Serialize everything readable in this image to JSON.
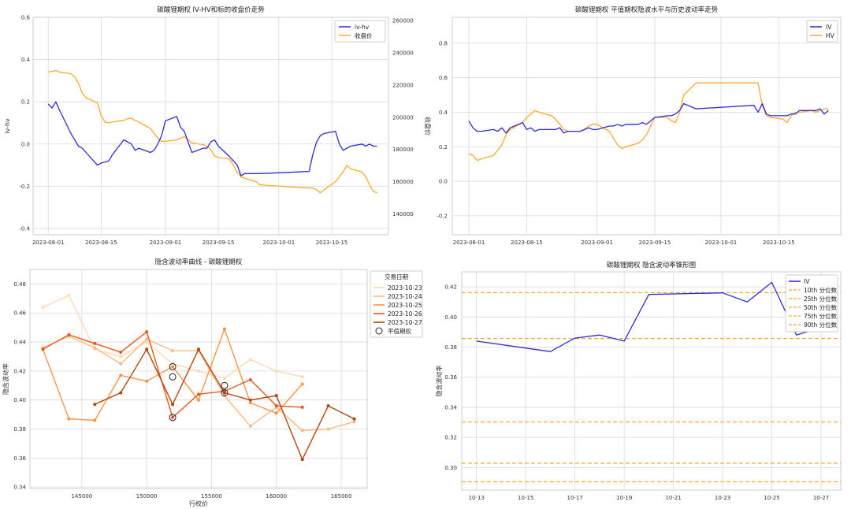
{
  "chart_data": [
    {
      "type": "line",
      "title": "碳酸锂期权 IV-HV和标的收盘价走势",
      "xlabel": "",
      "ylabel": "iv-hv",
      "y2label": "收盘价",
      "x_ticks": [
        "2023-08-01",
        "2023-08-15",
        "2023-09-01",
        "2023-09-15",
        "2023-10-01",
        "2023-10-15"
      ],
      "y_ticks": [
        "-0.4",
        "-0.2",
        "0.0",
        "0.2",
        "0.4",
        "0.6"
      ],
      "y2_ticks": [
        "140000",
        "160000",
        "180000",
        "200000",
        "220000",
        "240000",
        "260000"
      ],
      "ylim": [
        -0.43,
        0.6
      ],
      "y2lim": [
        127000,
        262000
      ],
      "legend": [
        "iv-hv",
        "收盘价"
      ],
      "legend_position": "top-right",
      "grid": true,
      "colors": {
        "iv_hv": "#2b2bdc",
        "close": "#ffa726",
        "y2_axis": "#d62728",
        "y_axis": "#1f77b4"
      },
      "series": [
        {
          "name": "iv-hv",
          "axis": "left",
          "color": "#2b2bdc",
          "x": [
            "2023-08-01",
            "2023-08-02",
            "2023-08-03",
            "2023-08-04",
            "2023-08-07",
            "2023-08-09",
            "2023-08-10",
            "2023-08-11",
            "2023-08-14",
            "2023-08-15",
            "2023-08-17",
            "2023-08-18",
            "2023-08-21",
            "2023-08-22",
            "2023-08-23",
            "2023-08-24",
            "2023-08-25",
            "2023-08-28",
            "2023-08-29",
            "2023-08-30",
            "2023-08-31",
            "2023-09-01",
            "2023-09-04",
            "2023-09-05",
            "2023-09-06",
            "2023-09-07",
            "2023-09-08",
            "2023-09-11",
            "2023-09-12",
            "2023-09-13",
            "2023-09-14",
            "2023-09-15",
            "2023-09-18",
            "2023-09-20",
            "2023-09-21",
            "2023-09-22",
            "2023-09-25",
            "2023-09-26",
            "2023-10-09",
            "2023-10-10",
            "2023-10-11",
            "2023-10-12",
            "2023-10-13",
            "2023-10-16",
            "2023-10-17",
            "2023-10-18",
            "2023-10-19",
            "2023-10-20",
            "2023-10-23",
            "2023-10-24",
            "2023-10-25",
            "2023-10-26",
            "2023-10-27"
          ],
          "y": [
            0.19,
            0.17,
            0.2,
            0.16,
            0.05,
            -0.01,
            -0.02,
            -0.04,
            -0.1,
            -0.09,
            -0.08,
            -0.05,
            0.02,
            0.01,
            0.0,
            -0.03,
            -0.02,
            -0.04,
            -0.03,
            0.0,
            0.04,
            0.11,
            0.13,
            0.08,
            0.06,
            0.01,
            -0.04,
            -0.02,
            -0.02,
            0.01,
            0.02,
            -0.01,
            -0.06,
            -0.1,
            -0.15,
            -0.14,
            -0.14,
            -0.14,
            -0.13,
            -0.05,
            0.01,
            0.04,
            0.05,
            0.06,
            0.0,
            -0.03,
            -0.02,
            -0.01,
            0.0,
            -0.01,
            0.0,
            -0.01,
            -0.01
          ]
        },
        {
          "name": "收盘价",
          "axis": "right",
          "color": "#ffa726",
          "x": [
            "2023-08-01",
            "2023-08-02",
            "2023-08-03",
            "2023-08-04",
            "2023-08-07",
            "2023-08-08",
            "2023-08-09",
            "2023-08-10",
            "2023-08-11",
            "2023-08-14",
            "2023-08-15",
            "2023-08-16",
            "2023-08-17",
            "2023-08-18",
            "2023-08-21",
            "2023-08-22",
            "2023-08-23",
            "2023-08-24",
            "2023-08-25",
            "2023-08-28",
            "2023-08-29",
            "2023-08-30",
            "2023-08-31",
            "2023-09-01",
            "2023-09-04",
            "2023-09-05",
            "2023-09-06",
            "2023-09-07",
            "2023-09-08",
            "2023-09-11",
            "2023-09-12",
            "2023-09-13",
            "2023-09-14",
            "2023-09-15",
            "2023-09-18",
            "2023-09-19",
            "2023-09-20",
            "2023-09-21",
            "2023-09-22",
            "2023-09-25",
            "2023-09-26",
            "2023-10-09",
            "2023-10-10",
            "2023-10-11",
            "2023-10-12",
            "2023-10-13",
            "2023-10-16",
            "2023-10-17",
            "2023-10-18",
            "2023-10-19",
            "2023-10-20",
            "2023-10-23",
            "2023-10-24",
            "2023-10-25",
            "2023-10-26",
            "2023-10-27"
          ],
          "y": [
            228000,
            228500,
            229000,
            228000,
            227000,
            225000,
            221000,
            215000,
            212000,
            209000,
            201000,
            197000,
            196500,
            197000,
            198000,
            199000,
            199500,
            198000,
            197000,
            193000,
            190000,
            187000,
            185000,
            185000,
            186000,
            187000,
            188000,
            186000,
            184000,
            183000,
            182000,
            180000,
            176000,
            175000,
            174000,
            170000,
            166000,
            163000,
            162000,
            160000,
            158000,
            156000,
            156000,
            155000,
            153000,
            155000,
            160000,
            163000,
            166000,
            170000,
            168000,
            166000,
            163000,
            158000,
            154000,
            153000
          ]
        }
      ]
    },
    {
      "type": "line",
      "title": "碳酸锂期权 平值期权隐波水平与历史波动率走势",
      "xlabel": "",
      "ylabel": "",
      "x_ticks": [
        "2023-08-01",
        "2023-08-15",
        "2023-09-01",
        "2023-09-15",
        "2023-10-01",
        "2023-10-15"
      ],
      "y_ticks": [
        "-0.2",
        "0.0",
        "0.2",
        "0.4",
        "0.6",
        "0.8"
      ],
      "ylim": [
        -0.31,
        0.95
      ],
      "legend": [
        "IV",
        "HV"
      ],
      "legend_position": "top-right",
      "grid": true,
      "series": [
        {
          "name": "IV",
          "color": "#2b2bdc",
          "x": [
            "2023-08-01",
            "2023-08-02",
            "2023-08-03",
            "2023-08-04",
            "2023-08-07",
            "2023-08-08",
            "2023-08-09",
            "2023-08-10",
            "2023-08-11",
            "2023-08-14",
            "2023-08-15",
            "2023-08-16",
            "2023-08-17",
            "2023-08-18",
            "2023-08-21",
            "2023-08-22",
            "2023-08-23",
            "2023-08-24",
            "2023-08-25",
            "2023-08-28",
            "2023-08-29",
            "2023-08-30",
            "2023-08-31",
            "2023-09-01",
            "2023-09-04",
            "2023-09-05",
            "2023-09-06",
            "2023-09-07",
            "2023-09-08",
            "2023-09-11",
            "2023-09-12",
            "2023-09-13",
            "2023-09-14",
            "2023-09-15",
            "2023-09-18",
            "2023-09-19",
            "2023-09-20",
            "2023-09-21",
            "2023-09-22",
            "2023-09-25",
            "2023-10-09",
            "2023-10-10",
            "2023-10-11",
            "2023-10-12",
            "2023-10-13",
            "2023-10-16",
            "2023-10-17",
            "2023-10-18",
            "2023-10-19",
            "2023-10-20",
            "2023-10-23",
            "2023-10-24",
            "2023-10-25",
            "2023-10-26",
            "2023-10-27"
          ],
          "y": [
            0.35,
            0.31,
            0.29,
            0.29,
            0.3,
            0.29,
            0.31,
            0.28,
            0.31,
            0.34,
            0.3,
            0.31,
            0.29,
            0.3,
            0.3,
            0.3,
            0.31,
            0.28,
            0.29,
            0.29,
            0.3,
            0.31,
            0.3,
            0.3,
            0.32,
            0.32,
            0.33,
            0.32,
            0.33,
            0.33,
            0.34,
            0.33,
            0.35,
            0.37,
            0.38,
            0.38,
            0.39,
            0.41,
            0.45,
            0.42,
            0.44,
            0.4,
            0.45,
            0.39,
            0.38,
            0.38,
            0.38,
            0.39,
            0.39,
            0.41,
            0.41,
            0.41,
            0.42,
            0.39,
            0.41
          ]
        },
        {
          "name": "HV",
          "color": "#ffa726",
          "x": [
            "2023-08-01",
            "2023-08-02",
            "2023-08-03",
            "2023-08-04",
            "2023-08-07",
            "2023-08-08",
            "2023-08-09",
            "2023-08-10",
            "2023-08-11",
            "2023-08-14",
            "2023-08-15",
            "2023-08-16",
            "2023-08-17",
            "2023-08-18",
            "2023-08-21",
            "2023-08-22",
            "2023-08-23",
            "2023-08-24",
            "2023-08-25",
            "2023-08-28",
            "2023-08-29",
            "2023-08-30",
            "2023-08-31",
            "2023-09-01",
            "2023-09-04",
            "2023-09-05",
            "2023-09-06",
            "2023-09-07",
            "2023-09-08",
            "2023-09-11",
            "2023-09-12",
            "2023-09-13",
            "2023-09-14",
            "2023-09-15",
            "2023-09-18",
            "2023-09-19",
            "2023-09-20",
            "2023-09-21",
            "2023-09-22",
            "2023-09-25",
            "2023-10-09",
            "2023-10-10",
            "2023-10-11",
            "2023-10-12",
            "2023-10-13",
            "2023-10-16",
            "2023-10-17",
            "2023-10-18",
            "2023-10-19",
            "2023-10-20",
            "2023-10-23",
            "2023-10-24",
            "2023-10-25",
            "2023-10-26",
            "2023-10-27"
          ],
          "y": [
            0.16,
            0.15,
            0.12,
            0.13,
            0.15,
            0.18,
            0.21,
            0.27,
            0.3,
            0.34,
            0.37,
            0.39,
            0.41,
            0.4,
            0.38,
            0.36,
            0.33,
            0.3,
            0.29,
            0.29,
            0.3,
            0.32,
            0.33,
            0.33,
            0.29,
            0.25,
            0.21,
            0.19,
            0.2,
            0.22,
            0.24,
            0.27,
            0.32,
            0.37,
            0.37,
            0.35,
            0.34,
            0.4,
            0.5,
            0.57,
            0.57,
            0.57,
            0.44,
            0.38,
            0.37,
            0.36,
            0.34,
            0.38,
            0.4,
            0.4,
            0.41,
            0.4,
            0.41,
            0.42,
            0.42
          ]
        }
      ]
    },
    {
      "type": "line",
      "title": "隐含波动率曲线 - 碳酸锂期权",
      "xlabel": "行权价",
      "ylabel": "隐含波动率",
      "x_ticks": [
        "145000",
        "150000",
        "155000",
        "160000",
        "165000"
      ],
      "y_ticks": [
        "0.34",
        "0.36",
        "0.38",
        "0.40",
        "0.42",
        "0.44",
        "0.46",
        "0.48"
      ],
      "xlim": [
        141000,
        167000
      ],
      "ylim": [
        0.339,
        0.49
      ],
      "legend_title": "交易日期",
      "legend_position": "top-right",
      "atm_label": "平值期权",
      "grid": true,
      "series": [
        {
          "name": "2023-10-23",
          "color": "#fdd9b4",
          "x": [
            142000,
            144000,
            146000,
            148000,
            150000,
            152000,
            154000,
            156000,
            158000,
            160000,
            162000
          ],
          "y": [
            0.464,
            0.472,
            0.435,
            0.43,
            0.44,
            0.425,
            0.42,
            0.415,
            0.428,
            0.42,
            0.416
          ]
        },
        {
          "name": "2023-10-24",
          "color": "#fdb97d",
          "x": [
            142000,
            144000,
            146000,
            148000,
            150000,
            152000,
            154000,
            156000,
            158000,
            160000,
            162000,
            164000,
            166000
          ],
          "y": [
            0.436,
            0.444,
            0.436,
            0.425,
            0.442,
            0.434,
            0.434,
            0.403,
            0.382,
            0.395,
            0.379,
            0.38,
            0.385
          ]
        },
        {
          "name": "2023-10-25",
          "color": "#fd9243",
          "x": [
            142000,
            144000,
            146000,
            148000,
            150000,
            152000,
            154000,
            156000,
            158000,
            160000,
            162000
          ],
          "y": [
            0.435,
            0.387,
            0.386,
            0.417,
            0.413,
            0.423,
            0.4,
            0.449,
            0.398,
            0.391,
            0.411
          ]
        },
        {
          "name": "2023-10-26",
          "color": "#e8561b",
          "x": [
            142000,
            144000,
            146000,
            148000,
            150000,
            152000,
            154000,
            156000,
            158000,
            160000,
            162000
          ],
          "y": [
            0.435,
            0.445,
            0.439,
            0.433,
            0.447,
            0.388,
            0.404,
            0.406,
            0.414,
            0.396,
            0.395
          ]
        },
        {
          "name": "2023-10-27",
          "color": "#b84309",
          "x": [
            146000,
            148000,
            150000,
            152000,
            154000,
            156000,
            158000,
            160000,
            162000,
            164000,
            166000
          ],
          "y": [
            0.397,
            0.405,
            0.435,
            0.397,
            0.435,
            0.405,
            0.4,
            0.403,
            0.359,
            0.396,
            0.387
          ]
        }
      ],
      "atm_points": [
        {
          "x": 152000,
          "y": 0.423
        },
        {
          "x": 152000,
          "y": 0.416
        },
        {
          "x": 152000,
          "y": 0.388
        },
        {
          "x": 156000,
          "y": 0.41
        },
        {
          "x": 156000,
          "y": 0.405
        }
      ]
    },
    {
      "type": "line",
      "title": "碳酸锂期权 隐含波动率锥形图",
      "xlabel": "",
      "ylabel": "隐含波动率",
      "x_ticks": [
        "10-13",
        "10-15",
        "10-17",
        "10-19",
        "10-21",
        "10-23",
        "10-25",
        "10-27"
      ],
      "y_ticks": [
        "0.30",
        "0.32",
        "0.34",
        "0.36",
        "0.38",
        "0.40",
        "0.42"
      ],
      "xlim": [
        12.4,
        27.8
      ],
      "ylim": [
        0.285,
        0.43
      ],
      "legend_position": "top-right",
      "grid": true,
      "series": [
        {
          "name": "IV",
          "color": "#2b2bdc",
          "x": [
            13,
            16,
            17,
            18,
            19,
            20,
            23,
            24,
            25,
            26,
            27
          ],
          "y": [
            0.384,
            0.377,
            0.386,
            0.388,
            0.384,
            0.415,
            0.416,
            0.41,
            0.423,
            0.388,
            0.393
          ]
        }
      ],
      "hlines": [
        {
          "name": "10th 分位数",
          "value": 0.2905,
          "color": "#ffa726"
        },
        {
          "name": "25th 分位数",
          "value": 0.3028,
          "color": "#ffa726"
        },
        {
          "name": "50th 分位数",
          "value": 0.3302,
          "color": "#ffa726"
        },
        {
          "name": "75th 分位数",
          "value": 0.3857,
          "color": "#ffa726"
        },
        {
          "name": "90th 分位数",
          "value": 0.4162,
          "color": "#ffa726"
        }
      ]
    }
  ]
}
